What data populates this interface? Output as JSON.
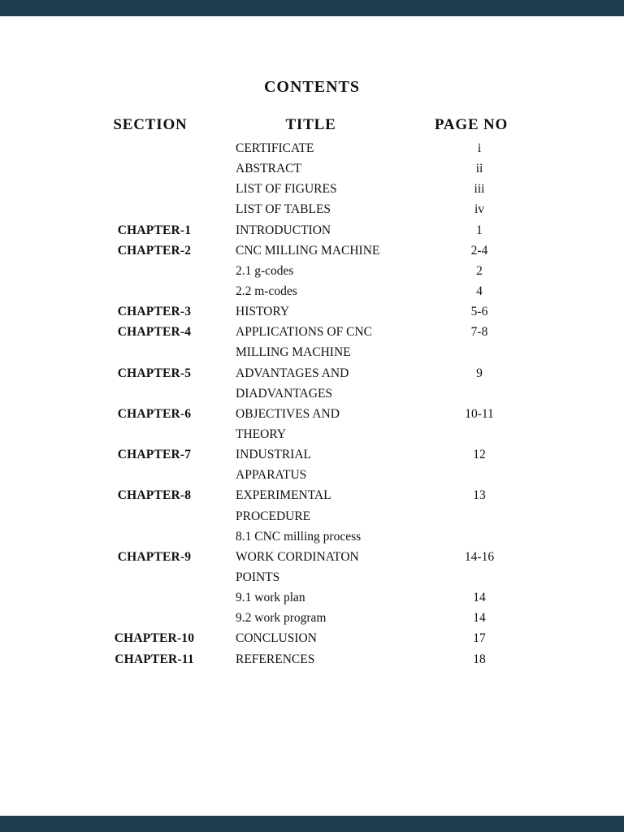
{
  "colors": {
    "viewer_background": "#1e3d4e",
    "page_background": "#ffffff",
    "text": "#111111"
  },
  "document": {
    "title": "CONTENTS",
    "columns": {
      "section": "SECTION",
      "title": "TITLE",
      "page": "PAGE NO"
    },
    "toc_rows": [
      {
        "section": "",
        "title": "CERTIFICATE",
        "page": "i"
      },
      {
        "section": "",
        "title": "ABSTRACT",
        "page": "ii"
      },
      {
        "section": "",
        "title": "LIST OF FIGURES",
        "page": "iii"
      },
      {
        "section": "",
        "title": "LIST OF TABLES",
        "page": "iv"
      },
      {
        "section": "CHAPTER-1",
        "title": "INTRODUCTION",
        "page": "1"
      },
      {
        "section": "CHAPTER-2",
        "title": "CNC MILLING MACHINE",
        "page": "2-4"
      },
      {
        "section": "",
        "title": "2.1 g-codes",
        "page": "2"
      },
      {
        "section": "",
        "title": "2.2 m-codes",
        "page": "4"
      },
      {
        "section": "CHAPTER-3",
        "title": "HISTORY",
        "page": "5-6"
      },
      {
        "section": "CHAPTER-4",
        "title": "APPLICATIONS OF CNC",
        "page": "7-8"
      },
      {
        "section": "",
        "title": "MILLING MACHINE",
        "page": ""
      },
      {
        "section": "CHAPTER-5",
        "title": "ADVANTAGES AND",
        "page": "9"
      },
      {
        "section": "",
        "title": "DIADVANTAGES",
        "page": ""
      },
      {
        "section": "CHAPTER-6",
        "title": "OBJECTIVES AND",
        "page": "10-11"
      },
      {
        "section": "",
        "title": "THEORY",
        "page": ""
      },
      {
        "section": "CHAPTER-7",
        "title": "INDUSTRIAL",
        "page": "12"
      },
      {
        "section": "",
        "title": "APPARATUS",
        "page": ""
      },
      {
        "section": "CHAPTER-8",
        "title": "EXPERIMENTAL",
        "page": "13"
      },
      {
        "section": "",
        "title": "PROCEDURE",
        "page": ""
      },
      {
        "section": "",
        "title": "8.1 CNC milling process",
        "page": ""
      },
      {
        "section": "CHAPTER-9",
        "title": "WORK CORDINATON",
        "page": "14-16"
      },
      {
        "section": "",
        "title": "POINTS",
        "page": ""
      },
      {
        "section": "",
        "title": "9.1 work plan",
        "page": "14"
      },
      {
        "section": "",
        "title": "9.2 work program",
        "page": "14"
      },
      {
        "section": "CHAPTER-10",
        "title": "CONCLUSION",
        "page": "17"
      },
      {
        "section": "CHAPTER-11",
        "title": "REFERENCES",
        "page": "18"
      }
    ]
  }
}
